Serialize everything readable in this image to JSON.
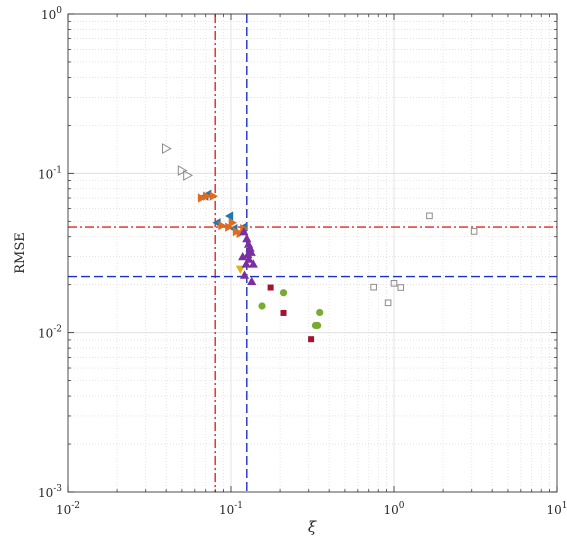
{
  "chart_data": {
    "type": "scatter",
    "title": "",
    "xlabel": "ξ",
    "ylabel": "RMSE",
    "xscale": "log",
    "yscale": "log",
    "xlim": [
      0.01,
      10
    ],
    "ylim": [
      0.001,
      1
    ],
    "grid": true,
    "x_ticks": [
      {
        "value": 0.01,
        "base": "10",
        "exp": "-2"
      },
      {
        "value": 0.1,
        "base": "10",
        "exp": "-1"
      },
      {
        "value": 1,
        "base": "10",
        "exp": "0"
      },
      {
        "value": 10,
        "base": "10",
        "exp": "1"
      }
    ],
    "y_ticks": [
      {
        "value": 0.001,
        "base": "10",
        "exp": "-3"
      },
      {
        "value": 0.01,
        "base": "10",
        "exp": "-2"
      },
      {
        "value": 0.1,
        "base": "10",
        "exp": "-1"
      },
      {
        "value": 1,
        "base": "10",
        "exp": "0"
      }
    ],
    "reference_lines": [
      {
        "orientation": "vertical",
        "value": 0.08,
        "style": "dash-dot",
        "color": "#e8231f"
      },
      {
        "orientation": "vertical",
        "value": 0.125,
        "style": "dashed",
        "color": "#1b2fc9"
      },
      {
        "orientation": "horizontal",
        "value": 0.046,
        "style": "dash-dot",
        "color": "#e8231f"
      },
      {
        "orientation": "horizontal",
        "value": 0.0225,
        "style": "dashed",
        "color": "#1b2fc9"
      }
    ],
    "series": [
      {
        "marker": "triangle-right-open",
        "color": "#8c8c8c",
        "x": [
          0.04,
          0.05,
          0.054
        ],
        "y": [
          0.143,
          0.104,
          0.097
        ]
      },
      {
        "marker": "triangle-left",
        "color": "#1f77b4",
        "x": [
          0.069,
          0.072,
          0.082,
          0.098,
          0.104,
          0.119
        ],
        "y": [
          0.072,
          0.074,
          0.049,
          0.054,
          0.045,
          0.046
        ]
      },
      {
        "marker": "triangle-right",
        "color": "#e06a1f",
        "x": [
          0.066,
          0.071,
          0.078,
          0.088,
          0.097,
          0.102,
          0.108,
          0.114,
          0.12
        ],
        "y": [
          0.07,
          0.072,
          0.072,
          0.047,
          0.046,
          0.049,
          0.043,
          0.042,
          0.045
        ]
      },
      {
        "marker": "triangle-down",
        "color": "#e0b31f",
        "x": [
          0.114
        ],
        "y": [
          0.025
        ]
      },
      {
        "marker": "triangle-up",
        "color": "#7b2fa0",
        "x": [
          0.12,
          0.125,
          0.128,
          0.131,
          0.118,
          0.127,
          0.133,
          0.129,
          0.124,
          0.137,
          0.121,
          0.134
        ],
        "y": [
          0.043,
          0.039,
          0.036,
          0.034,
          0.03,
          0.031,
          0.032,
          0.029,
          0.027,
          0.027,
          0.023,
          0.021
        ]
      },
      {
        "marker": "circle",
        "color": "#77ac30",
        "x": [
          0.155,
          0.21,
          0.33,
          0.35,
          0.34
        ],
        "y": [
          0.0147,
          0.0178,
          0.0111,
          0.0134,
          0.0111
        ]
      },
      {
        "marker": "square",
        "color": "#a2142f",
        "x": [
          0.175,
          0.21,
          0.31
        ],
        "y": [
          0.0192,
          0.0133,
          0.0091
        ]
      },
      {
        "marker": "square-open",
        "color": "#8c8c8c",
        "x": [
          0.75,
          0.92,
          1.0,
          1.1,
          1.65,
          3.1
        ],
        "y": [
          0.0193,
          0.0154,
          0.0204,
          0.0192,
          0.0541,
          0.0432
        ]
      }
    ]
  }
}
